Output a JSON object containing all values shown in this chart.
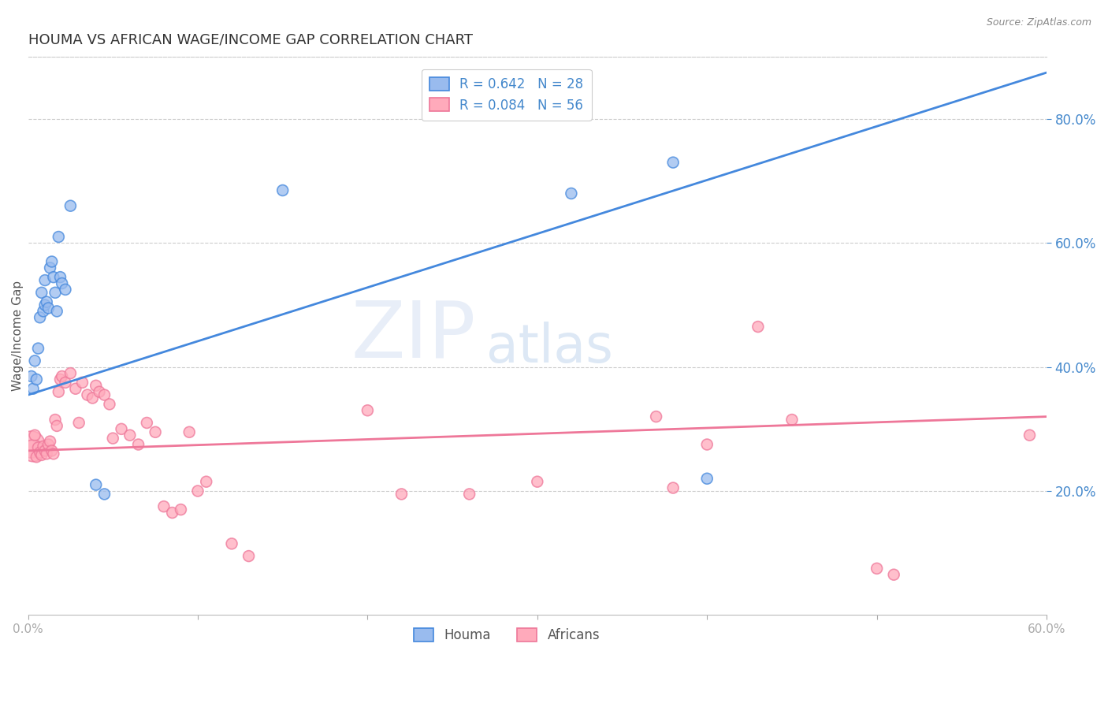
{
  "title": "HOUMA VS AFRICAN WAGE/INCOME GAP CORRELATION CHART",
  "source": "Source: ZipAtlas.com",
  "ylabel": "Wage/Income Gap",
  "xlim": [
    0.0,
    0.6
  ],
  "ylim": [
    0.0,
    0.9
  ],
  "xticks": [
    0.0,
    0.1,
    0.2,
    0.3,
    0.4,
    0.5,
    0.6
  ],
  "xtick_labels_show": [
    true,
    false,
    false,
    false,
    false,
    false,
    true
  ],
  "yticks_right": [
    0.2,
    0.4,
    0.6,
    0.8
  ],
  "houma_scatter": [
    [
      0.002,
      0.385
    ],
    [
      0.003,
      0.365
    ],
    [
      0.004,
      0.41
    ],
    [
      0.005,
      0.38
    ],
    [
      0.006,
      0.43
    ],
    [
      0.007,
      0.48
    ],
    [
      0.008,
      0.52
    ],
    [
      0.009,
      0.49
    ],
    [
      0.01,
      0.54
    ],
    [
      0.01,
      0.5
    ],
    [
      0.011,
      0.505
    ],
    [
      0.012,
      0.495
    ],
    [
      0.013,
      0.56
    ],
    [
      0.014,
      0.57
    ],
    [
      0.015,
      0.545
    ],
    [
      0.016,
      0.52
    ],
    [
      0.017,
      0.49
    ],
    [
      0.018,
      0.61
    ],
    [
      0.019,
      0.545
    ],
    [
      0.02,
      0.535
    ],
    [
      0.022,
      0.525
    ],
    [
      0.025,
      0.66
    ],
    [
      0.04,
      0.21
    ],
    [
      0.045,
      0.195
    ],
    [
      0.15,
      0.685
    ],
    [
      0.32,
      0.68
    ],
    [
      0.38,
      0.73
    ],
    [
      0.4,
      0.22
    ]
  ],
  "africans_scatter": [
    [
      0.002,
      0.275
    ],
    [
      0.003,
      0.265
    ],
    [
      0.004,
      0.29
    ],
    [
      0.005,
      0.255
    ],
    [
      0.006,
      0.27
    ],
    [
      0.007,
      0.262
    ],
    [
      0.008,
      0.258
    ],
    [
      0.009,
      0.272
    ],
    [
      0.01,
      0.265
    ],
    [
      0.011,
      0.26
    ],
    [
      0.012,
      0.275
    ],
    [
      0.013,
      0.28
    ],
    [
      0.014,
      0.265
    ],
    [
      0.015,
      0.26
    ],
    [
      0.016,
      0.315
    ],
    [
      0.017,
      0.305
    ],
    [
      0.018,
      0.36
    ],
    [
      0.019,
      0.38
    ],
    [
      0.02,
      0.385
    ],
    [
      0.022,
      0.375
    ],
    [
      0.025,
      0.39
    ],
    [
      0.028,
      0.365
    ],
    [
      0.03,
      0.31
    ],
    [
      0.032,
      0.375
    ],
    [
      0.035,
      0.355
    ],
    [
      0.038,
      0.35
    ],
    [
      0.04,
      0.37
    ],
    [
      0.042,
      0.36
    ],
    [
      0.045,
      0.355
    ],
    [
      0.048,
      0.34
    ],
    [
      0.05,
      0.285
    ],
    [
      0.055,
      0.3
    ],
    [
      0.06,
      0.29
    ],
    [
      0.065,
      0.275
    ],
    [
      0.07,
      0.31
    ],
    [
      0.075,
      0.295
    ],
    [
      0.08,
      0.175
    ],
    [
      0.085,
      0.165
    ],
    [
      0.09,
      0.17
    ],
    [
      0.095,
      0.295
    ],
    [
      0.1,
      0.2
    ],
    [
      0.105,
      0.215
    ],
    [
      0.12,
      0.115
    ],
    [
      0.13,
      0.095
    ],
    [
      0.2,
      0.33
    ],
    [
      0.22,
      0.195
    ],
    [
      0.26,
      0.195
    ],
    [
      0.3,
      0.215
    ],
    [
      0.37,
      0.32
    ],
    [
      0.38,
      0.205
    ],
    [
      0.4,
      0.275
    ],
    [
      0.43,
      0.465
    ],
    [
      0.45,
      0.315
    ],
    [
      0.5,
      0.075
    ],
    [
      0.51,
      0.065
    ],
    [
      0.59,
      0.29
    ]
  ],
  "houma_line": {
    "x0": 0.0,
    "y0": 0.355,
    "x1": 0.6,
    "y1": 0.875
  },
  "africans_line": {
    "x0": 0.0,
    "y0": 0.265,
    "x1": 0.6,
    "y1": 0.32
  },
  "houma_color": "#4488dd",
  "africans_color": "#ee7799",
  "houma_fill": "#99bbee",
  "africans_fill": "#ffaabb",
  "background_color": "#ffffff",
  "grid_color": "#cccccc",
  "title_color": "#333333",
  "axis_label_color": "#555555",
  "right_tick_color": "#4488cc",
  "watermark_zip_color": "#e8eef8",
  "watermark_atlas_color": "#dde8f5"
}
